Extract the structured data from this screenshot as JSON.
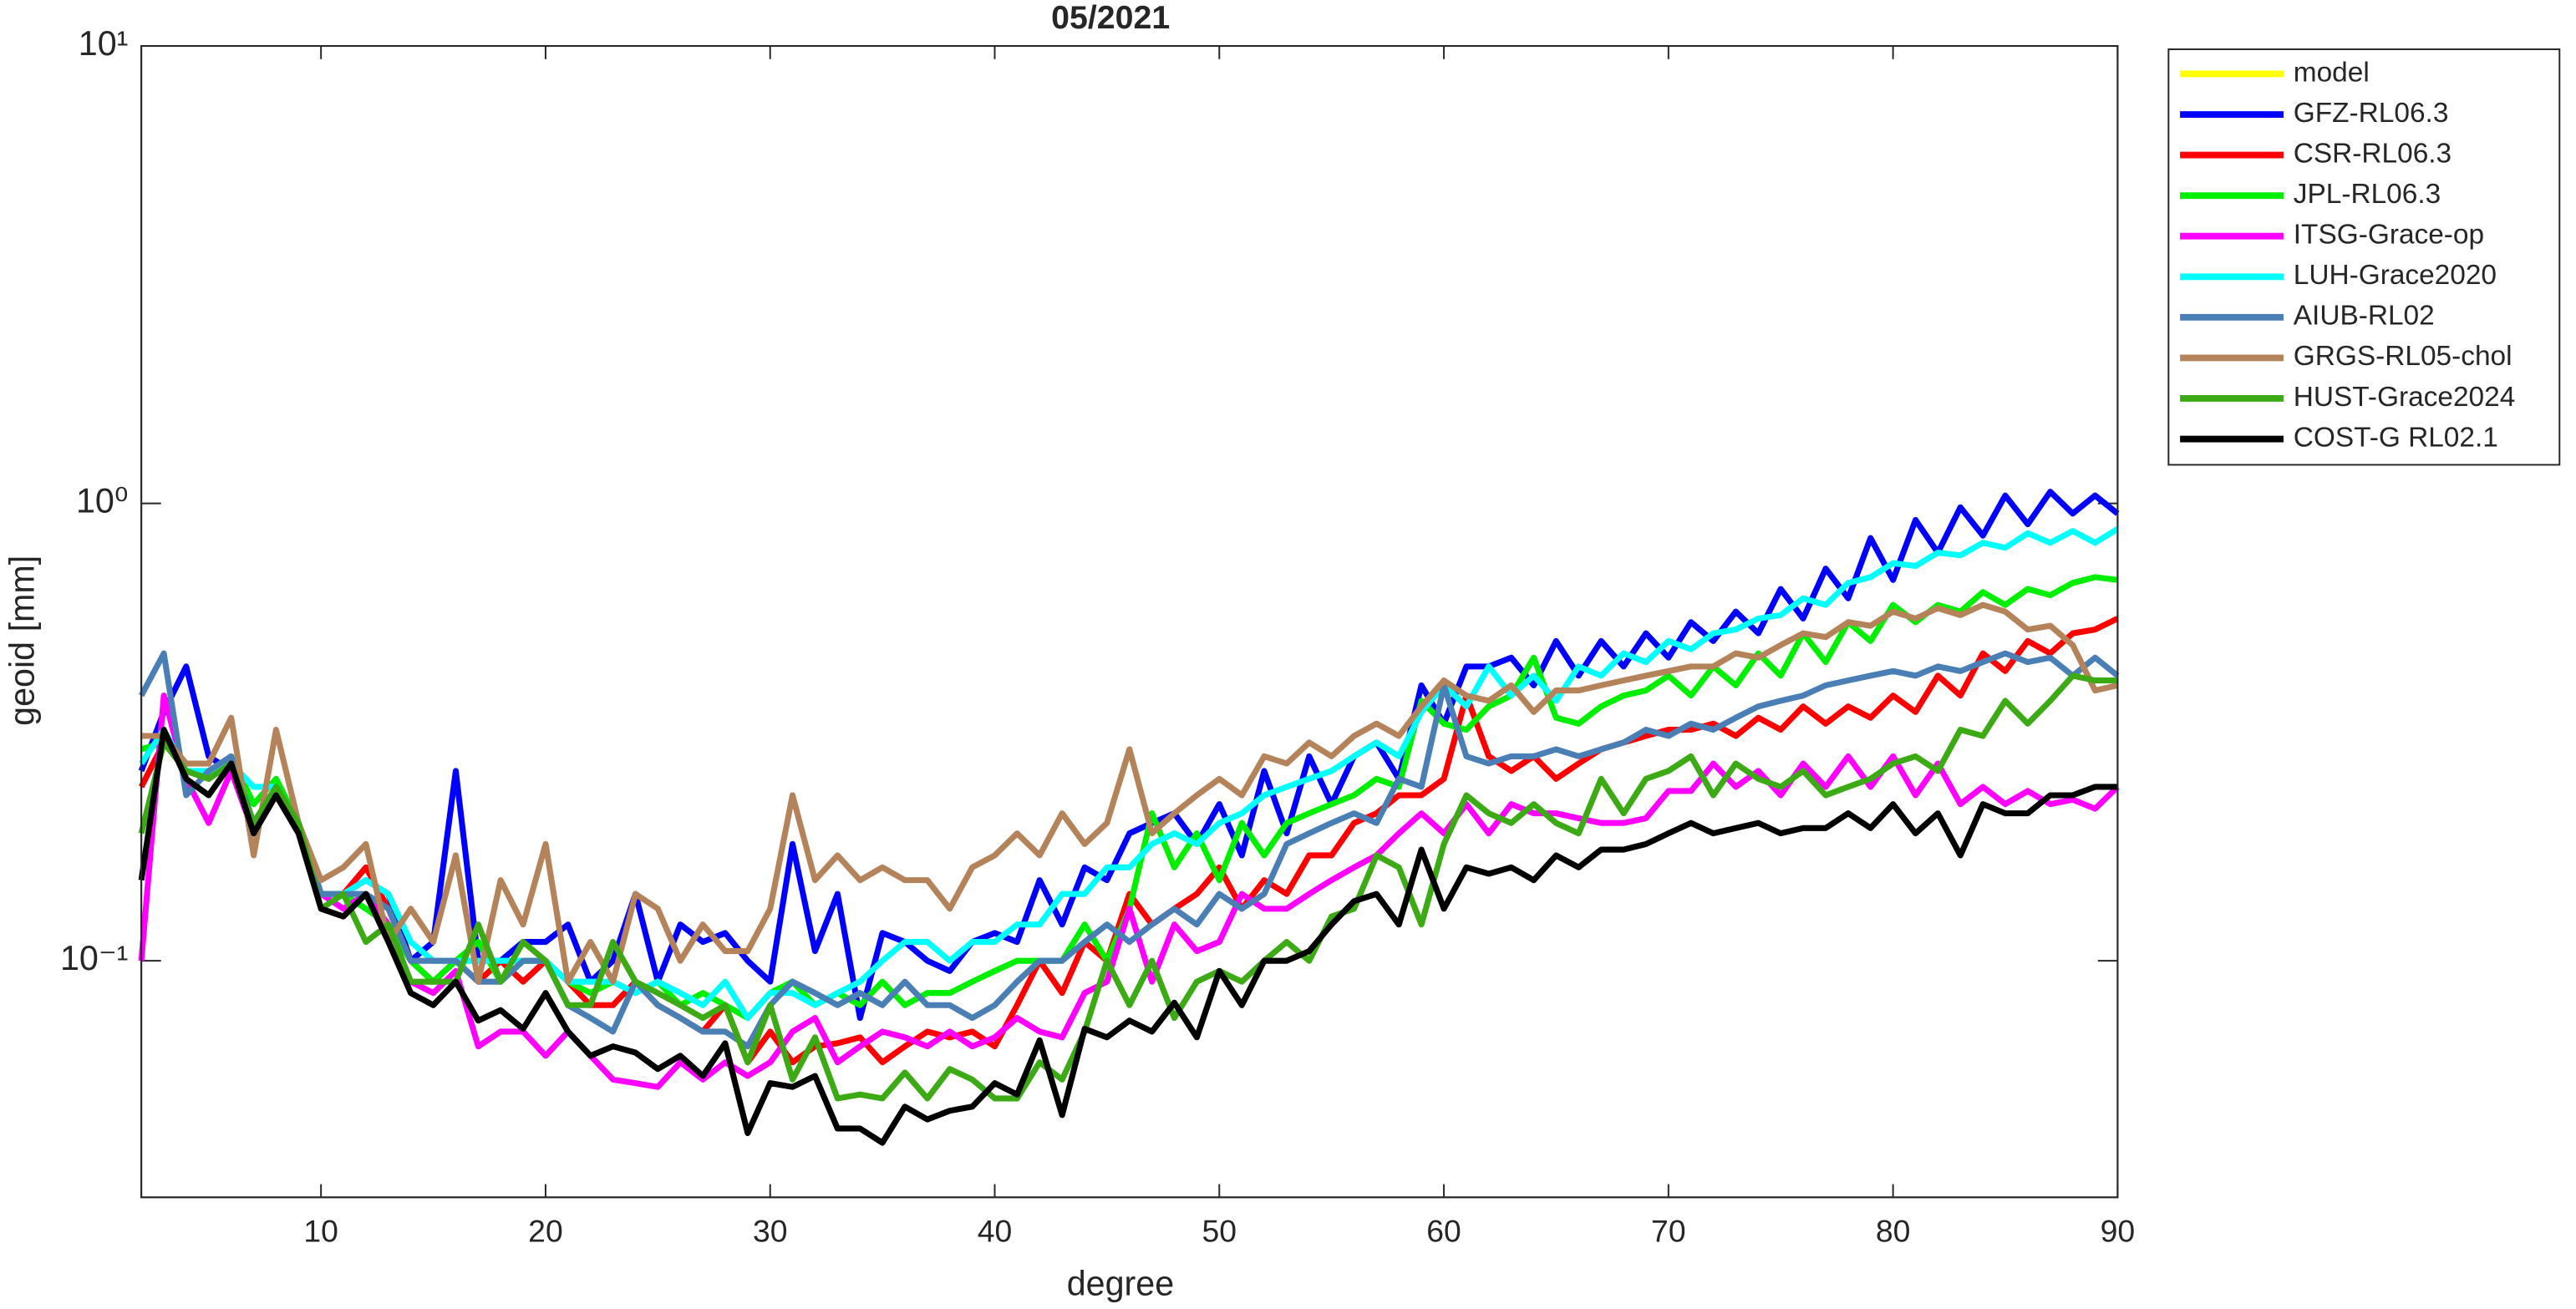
{
  "chart_data": {
    "type": "line",
    "title": "05/2021",
    "xlabel": "degree",
    "ylabel": "geoid [mm]",
    "log_y": true,
    "legend": "northeastoutside",
    "xlim": [
      2,
      90
    ],
    "xticks": [
      10,
      20,
      30,
      40,
      50,
      60,
      70,
      80,
      90
    ],
    "ylim": [
      0.0304,
      10
    ],
    "yticks": [
      {
        "value": 0.1,
        "label": "10⁻¹"
      },
      {
        "value": 1,
        "label": "10⁰"
      },
      {
        "value": 10,
        "label": "10¹"
      }
    ],
    "x": [
      2,
      3,
      4,
      5,
      6,
      7,
      8,
      9,
      10,
      11,
      12,
      13,
      14,
      15,
      16,
      17,
      18,
      19,
      20,
      21,
      22,
      23,
      24,
      25,
      26,
      27,
      28,
      29,
      30,
      31,
      32,
      33,
      34,
      35,
      36,
      37,
      38,
      39,
      40,
      41,
      42,
      43,
      44,
      45,
      46,
      47,
      48,
      49,
      50,
      51,
      52,
      53,
      54,
      55,
      56,
      57,
      58,
      59,
      60,
      61,
      62,
      63,
      64,
      65,
      66,
      67,
      68,
      69,
      70,
      71,
      72,
      73,
      74,
      75,
      76,
      77,
      78,
      79,
      80,
      81,
      82,
      83,
      84,
      85,
      86,
      87,
      88,
      89,
      90
    ],
    "series": [
      {
        "name": "model",
        "color": "#ffff00",
        "values": [
          null,
          null,
          null,
          null,
          null,
          null,
          null,
          null,
          null,
          null,
          null,
          null,
          null,
          null,
          null,
          null,
          null,
          null,
          null,
          null,
          null,
          null,
          null,
          null,
          null,
          null,
          null,
          null,
          null,
          null,
          null,
          null,
          null,
          null,
          null,
          null,
          null,
          null,
          null,
          null,
          null,
          null,
          null,
          null,
          null,
          null,
          null,
          null,
          null,
          null,
          null,
          null,
          null,
          null,
          null,
          null,
          null,
          null,
          null,
          null,
          null,
          null,
          null,
          null,
          null,
          null,
          null,
          null,
          null,
          null,
          null,
          null,
          null,
          null,
          null,
          null,
          null,
          null,
          null,
          null,
          null,
          null,
          null,
          null,
          null,
          null,
          null,
          null,
          null
        ]
      },
      {
        "name": "GFZ-RL06.3",
        "color": "#0000ff",
        "values": [
          0.26,
          0.35,
          0.44,
          0.28,
          0.26,
          0.2,
          0.24,
          0.2,
          0.14,
          0.14,
          0.15,
          0.14,
          0.1,
          0.11,
          0.26,
          0.1,
          0.1,
          0.11,
          0.11,
          0.12,
          0.09,
          0.1,
          0.14,
          0.09,
          0.12,
          0.11,
          0.115,
          0.1,
          0.09,
          0.18,
          0.105,
          0.14,
          0.075,
          0.115,
          0.11,
          0.1,
          0.095,
          0.11,
          0.115,
          0.11,
          0.15,
          0.12,
          0.16,
          0.15,
          0.19,
          0.2,
          0.21,
          0.18,
          0.22,
          0.17,
          0.26,
          0.19,
          0.28,
          0.22,
          0.28,
          0.3,
          0.25,
          0.4,
          0.33,
          0.44,
          0.44,
          0.46,
          0.4,
          0.5,
          0.42,
          0.5,
          0.44,
          0.52,
          0.46,
          0.55,
          0.5,
          0.58,
          0.52,
          0.65,
          0.56,
          0.72,
          0.62,
          0.84,
          0.68,
          0.92,
          0.78,
          0.98,
          0.85,
          1.04,
          0.9,
          1.06,
          0.95,
          1.04,
          0.95
        ]
      },
      {
        "name": "CSR-RL06.3",
        "color": "#ff0000",
        "values": [
          0.24,
          0.3,
          0.26,
          0.25,
          0.27,
          0.2,
          0.23,
          0.2,
          0.14,
          0.14,
          0.16,
          0.13,
          0.1,
          0.09,
          0.1,
          0.09,
          0.1,
          0.09,
          0.1,
          0.09,
          0.08,
          0.08,
          0.09,
          0.08,
          0.075,
          0.07,
          0.08,
          0.06,
          0.07,
          0.06,
          0.065,
          0.066,
          0.068,
          0.06,
          0.065,
          0.07,
          0.068,
          0.07,
          0.065,
          0.08,
          0.1,
          0.085,
          0.11,
          0.1,
          0.14,
          0.12,
          0.13,
          0.14,
          0.16,
          0.13,
          0.15,
          0.14,
          0.17,
          0.17,
          0.2,
          0.21,
          0.23,
          0.23,
          0.25,
          0.38,
          0.28,
          0.26,
          0.28,
          0.25,
          0.27,
          0.29,
          0.3,
          0.31,
          0.32,
          0.32,
          0.33,
          0.31,
          0.34,
          0.32,
          0.36,
          0.33,
          0.36,
          0.34,
          0.38,
          0.35,
          0.42,
          0.38,
          0.47,
          0.43,
          0.5,
          0.47,
          0.52,
          0.53,
          0.56
        ]
      },
      {
        "name": "JPL-RL06.3",
        "color": "#00ee00",
        "values": [
          0.29,
          0.3,
          0.26,
          0.25,
          0.28,
          0.22,
          0.25,
          0.2,
          0.14,
          0.14,
          0.13,
          0.12,
          0.1,
          0.09,
          0.1,
          0.11,
          0.09,
          0.1,
          0.1,
          0.09,
          0.085,
          0.09,
          0.085,
          0.09,
          0.08,
          0.085,
          0.08,
          0.075,
          0.085,
          0.09,
          0.08,
          0.085,
          0.08,
          0.09,
          0.08,
          0.085,
          0.085,
          0.09,
          0.095,
          0.1,
          0.1,
          0.1,
          0.12,
          0.1,
          0.13,
          0.21,
          0.16,
          0.19,
          0.15,
          0.2,
          0.17,
          0.2,
          0.21,
          0.22,
          0.23,
          0.25,
          0.24,
          0.37,
          0.33,
          0.32,
          0.36,
          0.38,
          0.46,
          0.34,
          0.33,
          0.36,
          0.38,
          0.39,
          0.42,
          0.38,
          0.44,
          0.4,
          0.47,
          0.42,
          0.52,
          0.45,
          0.55,
          0.5,
          0.6,
          0.55,
          0.6,
          0.58,
          0.64,
          0.6,
          0.65,
          0.63,
          0.67,
          0.69,
          0.68
        ]
      },
      {
        "name": "ITSG-Grace-op",
        "color": "#ff00ff",
        "values": [
          0.1,
          0.38,
          0.25,
          0.2,
          0.26,
          0.19,
          0.23,
          0.2,
          0.14,
          0.13,
          0.14,
          0.12,
          0.09,
          0.085,
          0.095,
          0.065,
          0.07,
          0.07,
          0.062,
          0.07,
          0.062,
          0.055,
          0.054,
          0.053,
          0.06,
          0.055,
          0.06,
          0.056,
          0.06,
          0.07,
          0.075,
          0.06,
          0.065,
          0.07,
          0.068,
          0.065,
          0.07,
          0.065,
          0.068,
          0.075,
          0.07,
          0.068,
          0.085,
          0.09,
          0.13,
          0.09,
          0.12,
          0.105,
          0.11,
          0.14,
          0.13,
          0.13,
          0.14,
          0.15,
          0.16,
          0.17,
          0.19,
          0.21,
          0.19,
          0.22,
          0.19,
          0.22,
          0.21,
          0.21,
          0.205,
          0.2,
          0.2,
          0.205,
          0.235,
          0.235,
          0.27,
          0.24,
          0.26,
          0.23,
          0.27,
          0.24,
          0.28,
          0.24,
          0.28,
          0.23,
          0.27,
          0.22,
          0.24,
          0.22,
          0.235,
          0.22,
          0.225,
          0.215,
          0.24
        ]
      },
      {
        "name": "LUH-Grace2020",
        "color": "#00ffff",
        "values": [
          0.27,
          0.32,
          0.26,
          0.26,
          0.27,
          0.24,
          0.24,
          0.2,
          0.14,
          0.14,
          0.15,
          0.14,
          0.11,
          0.1,
          0.1,
          0.1,
          0.1,
          0.1,
          0.1,
          0.09,
          0.09,
          0.09,
          0.085,
          0.09,
          0.085,
          0.08,
          0.09,
          0.075,
          0.085,
          0.085,
          0.08,
          0.085,
          0.09,
          0.1,
          0.11,
          0.11,
          0.1,
          0.11,
          0.11,
          0.12,
          0.12,
          0.14,
          0.14,
          0.16,
          0.16,
          0.18,
          0.19,
          0.18,
          0.2,
          0.21,
          0.23,
          0.24,
          0.25,
          0.26,
          0.28,
          0.3,
          0.28,
          0.35,
          0.4,
          0.36,
          0.44,
          0.38,
          0.42,
          0.37,
          0.44,
          0.42,
          0.47,
          0.45,
          0.5,
          0.48,
          0.52,
          0.53,
          0.56,
          0.57,
          0.62,
          0.6,
          0.67,
          0.69,
          0.74,
          0.73,
          0.78,
          0.77,
          0.82,
          0.8,
          0.86,
          0.82,
          0.87,
          0.82,
          0.88
        ]
      },
      {
        "name": "AIUB-RL02",
        "color": "#4a7fb5",
        "values": [
          0.38,
          0.47,
          0.23,
          0.26,
          0.28,
          0.2,
          0.24,
          0.2,
          0.14,
          0.14,
          0.14,
          0.13,
          0.1,
          0.1,
          0.1,
          0.09,
          0.09,
          0.1,
          0.1,
          0.08,
          0.075,
          0.07,
          0.09,
          0.08,
          0.075,
          0.07,
          0.07,
          0.065,
          0.08,
          0.09,
          0.085,
          0.08,
          0.085,
          0.08,
          0.09,
          0.08,
          0.08,
          0.075,
          0.08,
          0.09,
          0.1,
          0.1,
          0.11,
          0.12,
          0.11,
          0.12,
          0.13,
          0.12,
          0.14,
          0.13,
          0.14,
          0.18,
          0.19,
          0.2,
          0.21,
          0.2,
          0.25,
          0.24,
          0.4,
          0.28,
          0.27,
          0.28,
          0.28,
          0.29,
          0.28,
          0.29,
          0.3,
          0.32,
          0.31,
          0.33,
          0.32,
          0.34,
          0.36,
          0.37,
          0.38,
          0.4,
          0.41,
          0.42,
          0.43,
          0.42,
          0.44,
          0.43,
          0.45,
          0.47,
          0.45,
          0.46,
          0.42,
          0.46,
          0.42
        ]
      },
      {
        "name": "GRGS-RL05-chol",
        "color": "#b5835a",
        "values": [
          0.31,
          0.31,
          0.27,
          0.27,
          0.34,
          0.17,
          0.32,
          0.2,
          0.15,
          0.16,
          0.18,
          0.11,
          0.13,
          0.11,
          0.17,
          0.09,
          0.15,
          0.12,
          0.18,
          0.09,
          0.11,
          0.09,
          0.14,
          0.13,
          0.1,
          0.12,
          0.105,
          0.105,
          0.13,
          0.23,
          0.15,
          0.17,
          0.15,
          0.16,
          0.15,
          0.15,
          0.13,
          0.16,
          0.17,
          0.19,
          0.17,
          0.21,
          0.18,
          0.2,
          0.29,
          0.19,
          0.21,
          0.23,
          0.25,
          0.23,
          0.28,
          0.27,
          0.3,
          0.28,
          0.31,
          0.33,
          0.31,
          0.36,
          0.41,
          0.38,
          0.37,
          0.4,
          0.35,
          0.39,
          0.39,
          0.4,
          0.41,
          0.42,
          0.43,
          0.44,
          0.44,
          0.47,
          0.46,
          0.49,
          0.52,
          0.51,
          0.55,
          0.54,
          0.58,
          0.56,
          0.59,
          0.57,
          0.6,
          0.58,
          0.53,
          0.54,
          0.49,
          0.39,
          0.4
        ]
      },
      {
        "name": "HUST-Grace2024",
        "color": "#3caa14",
        "values": [
          0.19,
          0.3,
          0.26,
          0.25,
          0.27,
          0.2,
          0.24,
          0.2,
          0.13,
          0.14,
          0.11,
          0.12,
          0.09,
          0.09,
          0.09,
          0.12,
          0.09,
          0.11,
          0.1,
          0.08,
          0.08,
          0.11,
          0.09,
          0.085,
          0.08,
          0.075,
          0.08,
          0.06,
          0.08,
          0.055,
          0.068,
          0.05,
          0.051,
          0.05,
          0.057,
          0.05,
          0.058,
          0.055,
          0.05,
          0.05,
          0.06,
          0.055,
          0.07,
          0.1,
          0.08,
          0.1,
          0.075,
          0.09,
          0.095,
          0.09,
          0.1,
          0.11,
          0.1,
          0.125,
          0.13,
          0.17,
          0.16,
          0.12,
          0.18,
          0.23,
          0.21,
          0.2,
          0.22,
          0.2,
          0.19,
          0.25,
          0.21,
          0.25,
          0.26,
          0.28,
          0.23,
          0.27,
          0.25,
          0.24,
          0.26,
          0.23,
          0.24,
          0.25,
          0.27,
          0.28,
          0.26,
          0.32,
          0.31,
          0.37,
          0.33,
          0.37,
          0.42,
          0.41,
          0.41
        ]
      },
      {
        "name": "COST-G RL02.1",
        "color": "#000000",
        "values": [
          0.15,
          0.32,
          0.25,
          0.23,
          0.27,
          0.19,
          0.23,
          0.19,
          0.13,
          0.125,
          0.14,
          0.11,
          0.085,
          0.08,
          0.09,
          0.074,
          0.078,
          0.071,
          0.085,
          0.07,
          0.062,
          0.065,
          0.063,
          0.058,
          0.062,
          0.056,
          0.066,
          0.042,
          0.054,
          0.053,
          0.056,
          0.043,
          0.043,
          0.04,
          0.048,
          0.045,
          0.047,
          0.048,
          0.054,
          0.051,
          0.067,
          0.046,
          0.071,
          0.068,
          0.074,
          0.07,
          0.081,
          0.068,
          0.095,
          0.08,
          0.1,
          0.1,
          0.105,
          0.12,
          0.135,
          0.14,
          0.12,
          0.175,
          0.13,
          0.16,
          0.155,
          0.16,
          0.15,
          0.17,
          0.16,
          0.175,
          0.175,
          0.18,
          0.19,
          0.2,
          0.19,
          0.195,
          0.2,
          0.19,
          0.195,
          0.195,
          0.21,
          0.195,
          0.22,
          0.19,
          0.21,
          0.17,
          0.22,
          0.21,
          0.21,
          0.23,
          0.23,
          0.24,
          0.24
        ]
      }
    ]
  }
}
